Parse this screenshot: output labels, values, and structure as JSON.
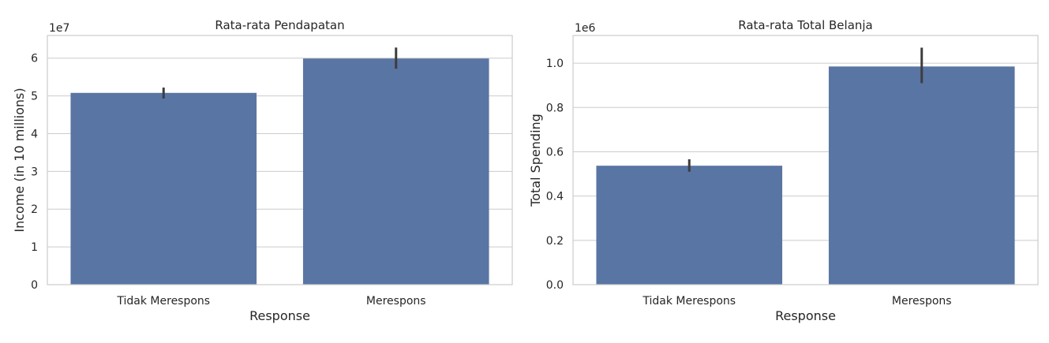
{
  "chart_data": [
    {
      "type": "bar",
      "title": "Rata-rata Pendapatan",
      "xlabel": "Response",
      "ylabel": "Income (in 10 millions)",
      "offset_text": "1e7",
      "categories": [
        "Tidak Merespons",
        "Merespons"
      ],
      "values": [
        5.08,
        5.99
      ],
      "error_low": [
        4.93,
        5.72
      ],
      "error_high": [
        5.22,
        6.28
      ],
      "ylim": [
        0,
        6.6
      ],
      "yticks": [
        0,
        1,
        2,
        3,
        4,
        5,
        6
      ],
      "ytick_labels": [
        "0",
        "1",
        "2",
        "3",
        "4",
        "5",
        "6"
      ],
      "color": "#5975a4",
      "grid": true
    },
    {
      "type": "bar",
      "title": "Rata-rata Total Belanja",
      "xlabel": "Response",
      "ylabel": "Total Spending",
      "offset_text": "1e6",
      "categories": [
        "Tidak Merespons",
        "Merespons"
      ],
      "values": [
        0.537,
        0.985
      ],
      "error_low": [
        0.51,
        0.91
      ],
      "error_high": [
        0.566,
        1.07
      ],
      "ylim": [
        0,
        1.125
      ],
      "yticks": [
        0.0,
        0.2,
        0.4,
        0.6,
        0.8,
        1.0
      ],
      "ytick_labels": [
        "0.0",
        "0.2",
        "0.4",
        "0.6",
        "0.8",
        "1.0"
      ],
      "color": "#5975a4",
      "grid": true
    }
  ]
}
